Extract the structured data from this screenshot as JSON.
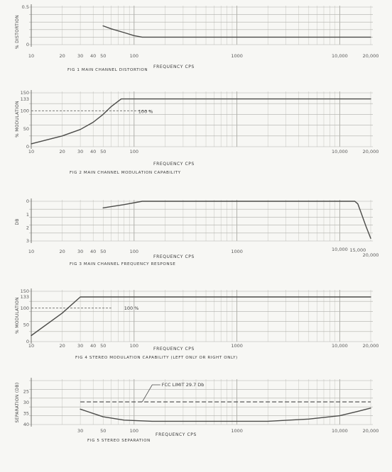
{
  "chart_data": [
    {
      "type": "line",
      "caption": "FIG 1  MAIN CHANNEL DISTORTION",
      "xlabel": "FREQUENCY  CPS",
      "ylabel": "% DISTORTION",
      "xscale": "log",
      "xlim": [
        10,
        20000
      ],
      "ylim": [
        0,
        0.5
      ],
      "yticks": [
        "0.5",
        "0"
      ],
      "xticks": [
        "10",
        "20",
        "30",
        "40",
        "50",
        "100",
        "1000",
        "10,000",
        "20,000"
      ],
      "series": [
        {
          "x": [
            50,
            60,
            80,
            100,
            120,
            150,
            20000
          ],
          "y": [
            0.25,
            0.21,
            0.16,
            0.12,
            0.1,
            0.1,
            0.1
          ]
        }
      ]
    },
    {
      "type": "line",
      "caption": "FIG 2  MAIN CHANNEL MODULATION CAPABILITY",
      "xlabel": "FREQUENCY  CPS",
      "ylabel": "% MODULATION",
      "xscale": "log",
      "xlim": [
        10,
        20000
      ],
      "ylim": [
        0,
        150
      ],
      "yticks": [
        "150",
        "133",
        "100",
        "50",
        "0"
      ],
      "xticks": [
        "10",
        "20",
        "30",
        "40",
        "50",
        "100",
        "10,000",
        "20,000"
      ],
      "annotation": "100 %",
      "series": [
        {
          "x": [
            10,
            20,
            30,
            40,
            50,
            60,
            75,
            20000
          ],
          "y": [
            8,
            30,
            48,
            68,
            90,
            112,
            133,
            133
          ]
        }
      ]
    },
    {
      "type": "line",
      "caption": "FIG 3  MAIN CHANNEL FREQUENCY RESPONSE",
      "xlabel": "FREQUENCY  CPS",
      "ylabel": "DB",
      "xscale": "log",
      "xlim": [
        10,
        20000
      ],
      "ylim": [
        -3,
        0
      ],
      "yticks": [
        "0",
        "1",
        "2",
        "3"
      ],
      "xticks": [
        "10",
        "20",
        "30",
        "40",
        "50",
        "100",
        "1000",
        "10,000",
        "15,000",
        "20,000"
      ],
      "series": [
        {
          "x": [
            50,
            80,
            120,
            200,
            1000,
            10000,
            14000,
            15000,
            16000,
            18000,
            20000
          ],
          "y": [
            -0.5,
            -0.25,
            0,
            0,
            0,
            0,
            0,
            -0.2,
            -0.8,
            -1.9,
            -2.8
          ]
        }
      ]
    },
    {
      "type": "line",
      "caption": "FIG 4  STEREO MODULATION CAPABILITY (LEFT ONLY OR RIGHT ONLY)",
      "xlabel": "FREQUENCY  CPS",
      "ylabel": "% MODULATION",
      "xscale": "log",
      "xlim": [
        10,
        20000
      ],
      "ylim": [
        0,
        150
      ],
      "yticks": [
        "150",
        "133",
        "100",
        "50",
        "0"
      ],
      "xticks": [
        "10",
        "20",
        "30",
        "40",
        "50",
        "100",
        "1000",
        "10,000",
        "20,000"
      ],
      "annotation": "100 %",
      "series": [
        {
          "x": [
            10,
            20,
            30,
            20000
          ],
          "y": [
            18,
            85,
            133,
            133
          ]
        }
      ]
    },
    {
      "type": "line",
      "caption": "FIG 5  STEREO SEPARATION",
      "xlabel": "FREQUENCY  CPS",
      "ylabel": "SEPARATION (DB)",
      "xscale": "log",
      "xlim": [
        10,
        20000
      ],
      "ylim": [
        40,
        20
      ],
      "yticks": [
        "25",
        "30",
        "35",
        "40"
      ],
      "xticks": [
        "30",
        "50",
        "100",
        "1000",
        "10,000",
        "20,000"
      ],
      "annotation": "FCC LIMIT 29.7 Db",
      "limit": 29.7,
      "series": [
        {
          "x": [
            30,
            50,
            80,
            150,
            500,
            2000,
            5000,
            10000,
            15000,
            20000
          ],
          "y": [
            33,
            36.5,
            38,
            38.5,
            38.5,
            38.5,
            37.5,
            36,
            34,
            32.5
          ]
        }
      ]
    }
  ]
}
